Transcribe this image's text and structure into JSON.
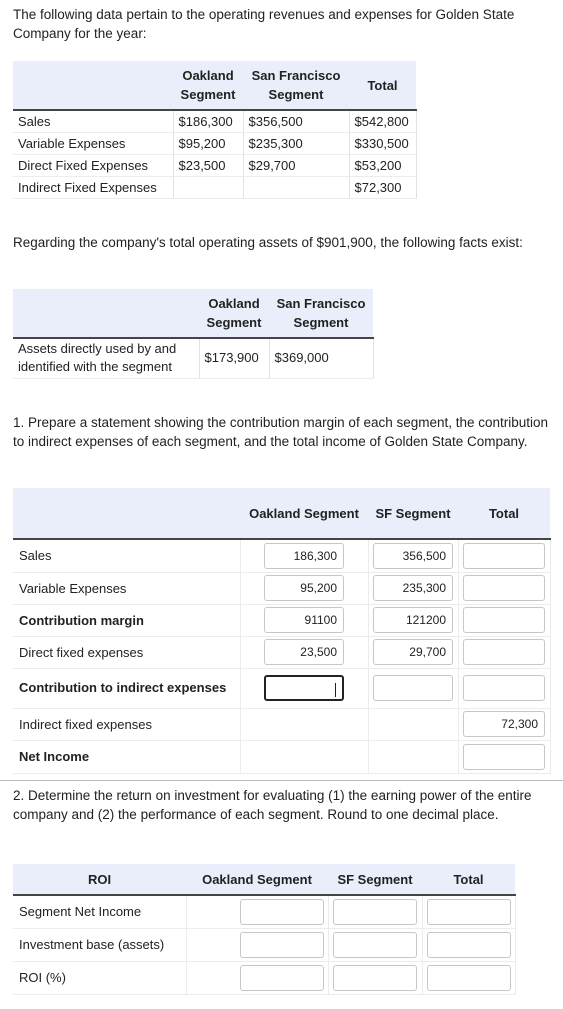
{
  "intro": "The following data pertain to the operating revenues and expenses for Golden State Company for the year:",
  "table1": {
    "headers": [
      "Oakland Segment",
      "San Francisco Segment",
      "Total"
    ],
    "rows": [
      {
        "label": "Sales",
        "oakland": "$186,300",
        "sf": "$356,500",
        "total": "$542,800"
      },
      {
        "label": "Variable Expenses",
        "oakland": "$95,200",
        "sf": "$235,300",
        "total": "$330,500"
      },
      {
        "label": "Direct Fixed Expenses",
        "oakland": "$23,500",
        "sf": "$29,700",
        "total": "$53,200"
      },
      {
        "label": "Indirect Fixed Expenses",
        "oakland": "",
        "sf": "",
        "total": "$72,300"
      }
    ]
  },
  "assets_text": "Regarding the company's total operating assets of $901,900, the following facts exist:",
  "table2": {
    "headers": [
      "Oakland Segment",
      "San Francisco Segment"
    ],
    "row": {
      "label": "Assets directly used by and identified with the segment",
      "oakland": "$173,900",
      "sf": "$369,000"
    }
  },
  "q1": "1. Prepare a statement showing the contribution margin of each segment, the contribution to indirect expenses of each segment, and the total income of Golden State Company.",
  "table3": {
    "headers": [
      "Oakland Segment",
      "SF Segment",
      "Total"
    ],
    "rows": [
      {
        "label": "Sales",
        "bold": false,
        "oakland": "186,300",
        "sf": "356,500",
        "total": ""
      },
      {
        "label": "Variable Expenses",
        "bold": false,
        "oakland": "95,200",
        "sf": "235,300",
        "total": ""
      },
      {
        "label": "Contribution margin",
        "bold": true,
        "oakland": "91100",
        "sf": "121200",
        "total": ""
      },
      {
        "label": "Direct fixed expenses",
        "bold": false,
        "oakland": "23,500",
        "sf": "29,700",
        "total": ""
      },
      {
        "label": "Contribution to indirect expenses",
        "bold": true,
        "oakland": "",
        "sf": "",
        "total": ""
      },
      {
        "label": "Indirect fixed expenses",
        "bold": false,
        "total": "72,300"
      },
      {
        "label": "Net Income",
        "bold": true,
        "total": ""
      }
    ]
  },
  "q2": "2. Determine the return on investment for evaluating (1) the earning power of the entire company and (2) the performance of each segment. Round to one decimal place.",
  "table4": {
    "headers": [
      "ROI",
      "Oakland Segment",
      "SF Segment",
      "Total"
    ],
    "rows": [
      {
        "label": "Segment Net Income",
        "oakland": "",
        "sf": "",
        "total": ""
      },
      {
        "label": "Investment base (assets)",
        "oakland": "",
        "sf": "",
        "total": ""
      },
      {
        "label": "ROI (%)",
        "oakland": "",
        "sf": "",
        "total": ""
      }
    ]
  }
}
